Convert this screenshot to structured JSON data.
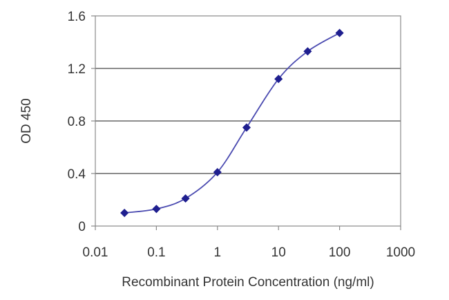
{
  "chart_data": {
    "type": "scatter",
    "title": "",
    "xlabel": "Recombinant Protein Concentration (ng/ml)",
    "ylabel": "OD 450",
    "x_scale": "log",
    "xlim": [
      0.01,
      1000
    ],
    "ylim": [
      0,
      1.6
    ],
    "x_ticks": [
      0.01,
      0.1,
      1,
      10,
      100,
      1000
    ],
    "x_tick_labels": [
      "0.01",
      "0.1",
      "1",
      "10",
      "100",
      "1000"
    ],
    "y_ticks": [
      0,
      0.4,
      0.8,
      1.2,
      1.6
    ],
    "y_tick_labels": [
      "0",
      "0.4",
      "0.8",
      "1.2",
      "1.6"
    ],
    "grid": "horizontal",
    "legend": "none",
    "series": [
      {
        "x": [
          0.03,
          0.1,
          0.3,
          1,
          3,
          10,
          30,
          100
        ],
        "y": [
          0.1,
          0.13,
          0.21,
          0.41,
          0.75,
          1.12,
          1.33,
          1.47
        ],
        "color": "#1f1f8f",
        "marker": "diamond",
        "line": "smooth"
      }
    ]
  }
}
